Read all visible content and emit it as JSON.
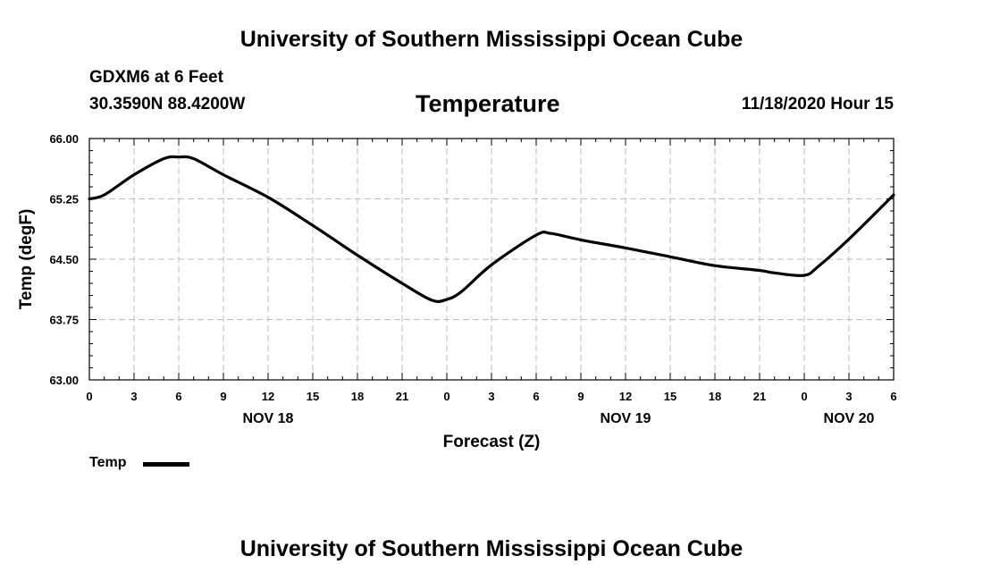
{
  "header": {
    "top_title": "University of Southern Mississippi Ocean Cube",
    "bottom_title": "University of Southern Mississippi Ocean Cube",
    "station": "GDXM6 at 6 Feet",
    "coords": "30.3590N 88.4200W",
    "plot_title": "Temperature",
    "datetime": "11/18/2020 Hour 15"
  },
  "chart_data": {
    "type": "line",
    "title": "Temperature",
    "xlabel": "Forecast (Z)",
    "ylabel": "Temp (degF)",
    "ylim": [
      63.0,
      66.0
    ],
    "xlim": [
      0,
      54
    ],
    "yticks": [
      "63.00",
      "63.75",
      "64.50",
      "65.25",
      "66.00"
    ],
    "ytick_values": [
      63.0,
      63.75,
      64.5,
      65.25,
      66.0
    ],
    "xtick_labels": [
      "0",
      "3",
      "6",
      "9",
      "12",
      "15",
      "18",
      "21",
      "0",
      "3",
      "6",
      "9",
      "12",
      "15",
      "18",
      "21",
      "0",
      "3",
      "6"
    ],
    "day_labels": [
      {
        "label": "NOV 18",
        "hour": 12
      },
      {
        "label": "NOV 19",
        "hour": 36
      },
      {
        "label": "NOV 20",
        "hour": 51
      }
    ],
    "grid": true,
    "series": [
      {
        "name": "Temp",
        "x": [
          0,
          1,
          3,
          5,
          6,
          7,
          9,
          12,
          15,
          18,
          21,
          23,
          24,
          25,
          27,
          30,
          31,
          33,
          36,
          39,
          42,
          45,
          46,
          48,
          49,
          51,
          54
        ],
        "values": [
          65.25,
          65.3,
          65.55,
          65.75,
          65.77,
          65.75,
          65.55,
          65.27,
          64.92,
          64.55,
          64.2,
          63.99,
          64.0,
          64.1,
          64.43,
          64.8,
          64.82,
          64.74,
          64.64,
          64.53,
          64.42,
          64.36,
          64.33,
          64.3,
          64.42,
          64.75,
          65.3
        ]
      }
    ],
    "legend": [
      {
        "label": "Temp",
        "color": "#000000"
      }
    ],
    "legend_position": "bottom-left"
  }
}
